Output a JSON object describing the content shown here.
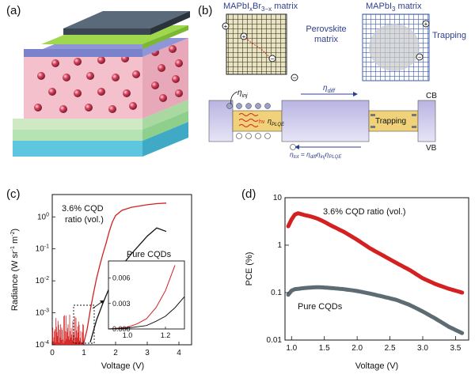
{
  "panels": {
    "a": {
      "label": "(a)"
    },
    "b": {
      "label": "(b)",
      "matrix_mixed_label": "MAPbI",
      "matrix_mixed_sub": "x",
      "matrix_mixed_rest": "Br",
      "matrix_mixed_sub2": "3−x",
      "matrix_mixed_suffix": " matrix",
      "perovskite_matrix_line1": "Perovskite",
      "perovskite_matrix_line2": "matrix",
      "matrix_pure_label": "MAPbI",
      "matrix_pure_sub": "3",
      "matrix_pure_suffix": " matrix",
      "trapping_label": "Trapping",
      "trapping_band_label": "Trapping",
      "eta_inj": "η",
      "eta_inj_sub": "inj",
      "eta_diff": "η",
      "eta_diff_sub": "diff",
      "eta_plqe": "η",
      "eta_plqe_sub": "PLQE",
      "eta_tot_equation": "η",
      "eta_tot_sub": "tot",
      "eta_tot_rest": " = η",
      "eta_tot_rest_sub1": "diff",
      "eta_tot_rest2": "η",
      "eta_tot_rest_sub2": "inj",
      "eta_tot_rest3": "η",
      "eta_tot_rest_sub3": "PLQE",
      "cb_label": "CB",
      "vb_label": "VB",
      "hv_label": "hν"
    },
    "c": {
      "label": "(c)",
      "annotation_line1": "3.6% CQD",
      "annotation_line2": "ratio (vol.)",
      "inset_label": "Pure CQDs",
      "ylabel_main": "Radiance (W sr",
      "ylabel_exp1": "-1",
      "ylabel_mid": " m",
      "ylabel_exp2": "-2",
      "ylabel_end": ")",
      "xlabel": "Voltage (V)",
      "y_tick_base": "10",
      "y_tick_exps": [
        "-4",
        "-3",
        "-2",
        "-1",
        "0"
      ],
      "x_ticks": [
        "0",
        "1",
        "2",
        "3",
        "4"
      ],
      "inset_y_ticks": [
        "0.000",
        "0.003",
        "0.006"
      ],
      "inset_x_ticks": [
        "1.0",
        "1.2"
      ]
    },
    "d": {
      "label": "(d)",
      "annotation": "3.6% CQD ratio (vol.)",
      "pure_label": "Pure CQDs",
      "ylabel": "PCE (%)",
      "xlabel": "Voltage (V)",
      "y_ticks": [
        "0.01",
        "0.1",
        "1",
        "10"
      ],
      "x_ticks": [
        "1.0",
        "1.5",
        "2.0",
        "2.5",
        "3.0",
        "3.5"
      ]
    }
  },
  "colors": {
    "red_series": "#d42020",
    "black_series": "#111111",
    "gray_series": "#5d6b72",
    "blue_text": "#2f3f8f"
  },
  "chart_data": [
    {
      "type": "line",
      "panel": "c",
      "xlabel": "Voltage (V)",
      "ylabel": "Radiance (W sr-1 m-2)",
      "xlim": [
        0,
        4.4
      ],
      "ylim": [
        0.0001,
        5
      ],
      "yscale": "log",
      "series": [
        {
          "name": "3.6% CQD ratio (vol.)",
          "color": "#d42020",
          "x": [
            1.0,
            1.1,
            1.2,
            1.3,
            1.4,
            1.5,
            1.6,
            1.7,
            1.8,
            1.9,
            2.0,
            2.2,
            2.5,
            3.0,
            3.3,
            3.6
          ],
          "y": [
            0.00012,
            0.0003,
            0.0012,
            0.004,
            0.012,
            0.03,
            0.07,
            0.15,
            0.35,
            0.7,
            1.1,
            1.6,
            2.0,
            2.4,
            2.6,
            2.7
          ]
        },
        {
          "name": "Pure CQDs",
          "color": "#111111",
          "x": [
            1.2,
            1.4,
            1.6,
            1.8,
            2.0,
            2.2,
            2.5,
            2.8,
            3.0,
            3.3,
            3.6
          ],
          "y": [
            0.00012,
            0.0006,
            0.002,
            0.006,
            0.015,
            0.03,
            0.07,
            0.15,
            0.25,
            0.45,
            0.35
          ]
        }
      ],
      "noise_region": {
        "x_range": [
          0,
          1.0
        ],
        "y_range": [
          0.0001,
          0.0009
        ]
      },
      "inset": {
        "xlim": [
          0.9,
          1.3
        ],
        "ylim": [
          0,
          0.008
        ],
        "series": [
          {
            "color": "#d42020",
            "x": [
              0.9,
              1.0,
              1.05,
              1.1,
              1.15,
              1.2,
              1.25
            ],
            "y": [
              0.0,
              0.0002,
              0.0006,
              0.0012,
              0.0025,
              0.0045,
              0.0075
            ]
          },
          {
            "color": "#111111",
            "x": [
              0.9,
              1.0,
              1.1,
              1.15,
              1.2,
              1.25,
              1.3
            ],
            "y": [
              0.0,
              0.0001,
              0.0004,
              0.0009,
              0.0015,
              0.0025,
              0.0038
            ]
          }
        ]
      }
    },
    {
      "type": "scatter",
      "panel": "d",
      "xlabel": "Voltage (V)",
      "ylabel": "PCE (%)",
      "xlim": [
        0.9,
        3.7
      ],
      "ylim": [
        0.01,
        10
      ],
      "yscale": "log",
      "series": [
        {
          "name": "3.6% CQD ratio (vol.)",
          "color": "#d42020",
          "x": [
            0.95,
            1.0,
            1.05,
            1.1,
            1.15,
            1.2,
            1.3,
            1.4,
            1.5,
            1.6,
            1.8,
            2.0,
            2.2,
            2.4,
            2.6,
            2.8,
            3.0,
            3.2,
            3.4,
            3.6
          ],
          "y": [
            2.5,
            3.5,
            4.4,
            4.7,
            4.5,
            4.3,
            4.0,
            3.6,
            3.1,
            2.6,
            1.9,
            1.3,
            0.85,
            0.6,
            0.42,
            0.3,
            0.2,
            0.15,
            0.12,
            0.1
          ]
        },
        {
          "name": "Pure CQDs",
          "color": "#5d6b72",
          "x": [
            0.95,
            1.0,
            1.05,
            1.1,
            1.2,
            1.3,
            1.4,
            1.5,
            1.6,
            1.8,
            2.0,
            2.2,
            2.4,
            2.6,
            2.8,
            3.0,
            3.2,
            3.4,
            3.6
          ],
          "y": [
            0.09,
            0.11,
            0.118,
            0.12,
            0.125,
            0.128,
            0.13,
            0.128,
            0.125,
            0.118,
            0.108,
            0.095,
            0.082,
            0.07,
            0.055,
            0.04,
            0.028,
            0.019,
            0.014
          ]
        }
      ]
    }
  ]
}
